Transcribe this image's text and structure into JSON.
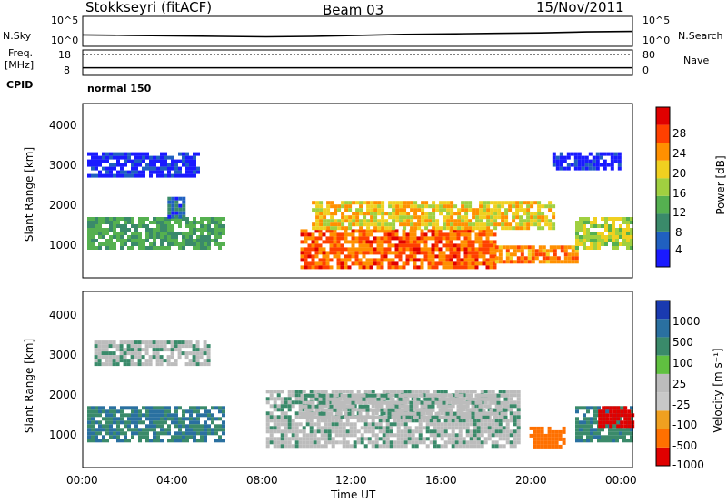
{
  "header": {
    "station": "Stokkseyri (fitACF)",
    "beam": "Beam 03",
    "date": "15/Nov/2011"
  },
  "panel_labels": {
    "nsky": "N.Sky",
    "nsearch": "N.Search",
    "freq": "Freq.",
    "freq_unit": "[MHz]",
    "nave": "Nave",
    "cpid": "CPID",
    "cpid_value": "normal 150"
  },
  "chart_data": [
    {
      "type": "line",
      "panel": "noise",
      "y_ticks_left": [
        "10^5",
        "10^0"
      ],
      "y_ticks_right": [
        "10^5",
        "10^0"
      ],
      "series": [
        {
          "name": "N.Sky",
          "x_hours": [
            0,
            2,
            4,
            6,
            8,
            10,
            12,
            14,
            16,
            18,
            20,
            22,
            24
          ],
          "values_log10": [
            1.6,
            1.5,
            1.4,
            1.3,
            1.2,
            1.3,
            1.5,
            1.7,
            1.8,
            1.9,
            2.0,
            2.2,
            2.3
          ]
        }
      ]
    },
    {
      "type": "line",
      "panel": "frequency",
      "y_ticks_left": [
        "18",
        "8"
      ],
      "y_ticks_right": [
        "80",
        "0"
      ],
      "series": [
        {
          "name": "Freq.",
          "x_hours": [
            0,
            24
          ],
          "values": [
            10,
            10
          ]
        }
      ]
    },
    {
      "type": "heatmap",
      "panel": "power",
      "ylabel": "Slant Range [km]",
      "yticks": [
        "1000",
        "2000",
        "3000",
        "4000"
      ],
      "ylim": [
        200,
        4500
      ],
      "colorbar_label": "Power [dB]",
      "colorbar_ticks": [
        "4",
        "8",
        "12",
        "16",
        "20",
        "24",
        "28"
      ],
      "colors": [
        "#1a1aff",
        "#2060c0",
        "#3a8a6a",
        "#55b050",
        "#a0d040",
        "#f0d020",
        "#ff9000",
        "#ff4000",
        "#e00000"
      ],
      "regions": [
        {
          "x": [
            0.2,
            6.2
          ],
          "y": [
            900,
            1700
          ],
          "value_db": 12
        },
        {
          "x": [
            3.7,
            4.4
          ],
          "y": [
            1700,
            2200
          ],
          "value_db": 8
        },
        {
          "x": [
            0.2,
            5.0
          ],
          "y": [
            2700,
            3300
          ],
          "value_db": 4
        },
        {
          "x": [
            9.5,
            18.0
          ],
          "y": [
            500,
            1400
          ],
          "value_db": 26
        },
        {
          "x": [
            10.0,
            20.5
          ],
          "y": [
            1400,
            2100
          ],
          "value_db": 20
        },
        {
          "x": [
            18.0,
            21.5
          ],
          "y": [
            600,
            1000
          ],
          "value_db": 24
        },
        {
          "x": [
            21.5,
            24.0
          ],
          "y": [
            900,
            1700
          ],
          "value_db": 18
        },
        {
          "x": [
            20.5,
            23.5
          ],
          "y": [
            2900,
            3300
          ],
          "value_db": 4
        }
      ]
    },
    {
      "type": "heatmap",
      "panel": "velocity",
      "ylabel": "Slant Range [km]",
      "yticks": [
        "1000",
        "2000",
        "3000",
        "4000"
      ],
      "ylim": [
        200,
        4500
      ],
      "xlabel": "Time UT",
      "xticks": [
        "00:00",
        "04:00",
        "08:00",
        "12:00",
        "16:00",
        "20:00",
        "00:00"
      ],
      "colorbar_label": "Velocity [m s⁻¹]",
      "colorbar_ticks": [
        "1000",
        "500",
        "100",
        "25",
        "-25",
        "-100",
        "-500",
        "-1000"
      ],
      "colors": [
        "#1a3ab0",
        "#2a70a0",
        "#3a8a6a",
        "#60c040",
        "#bcbcbc",
        "#c8c8c8",
        "#f0a020",
        "#ff7000",
        "#e00000"
      ],
      "regions": [
        {
          "x": [
            0.2,
            6.2
          ],
          "y": [
            900,
            1700
          ],
          "value": 100
        },
        {
          "x": [
            0.5,
            5.5
          ],
          "y": [
            2700,
            3300
          ],
          "value": 0
        },
        {
          "x": [
            8.0,
            19.0
          ],
          "y": [
            700,
            2100
          ],
          "value": 0
        },
        {
          "x": [
            9.5,
            18.5
          ],
          "y": [
            1400,
            2000
          ],
          "value": 0
        },
        {
          "x": [
            19.5,
            21.0
          ],
          "y": [
            700,
            1200
          ],
          "value": -300
        },
        {
          "x": [
            21.5,
            24.0
          ],
          "y": [
            900,
            1700
          ],
          "value": 80
        },
        {
          "x": [
            22.5,
            24.0
          ],
          "y": [
            1200,
            1700
          ],
          "value": -700
        }
      ]
    }
  ]
}
